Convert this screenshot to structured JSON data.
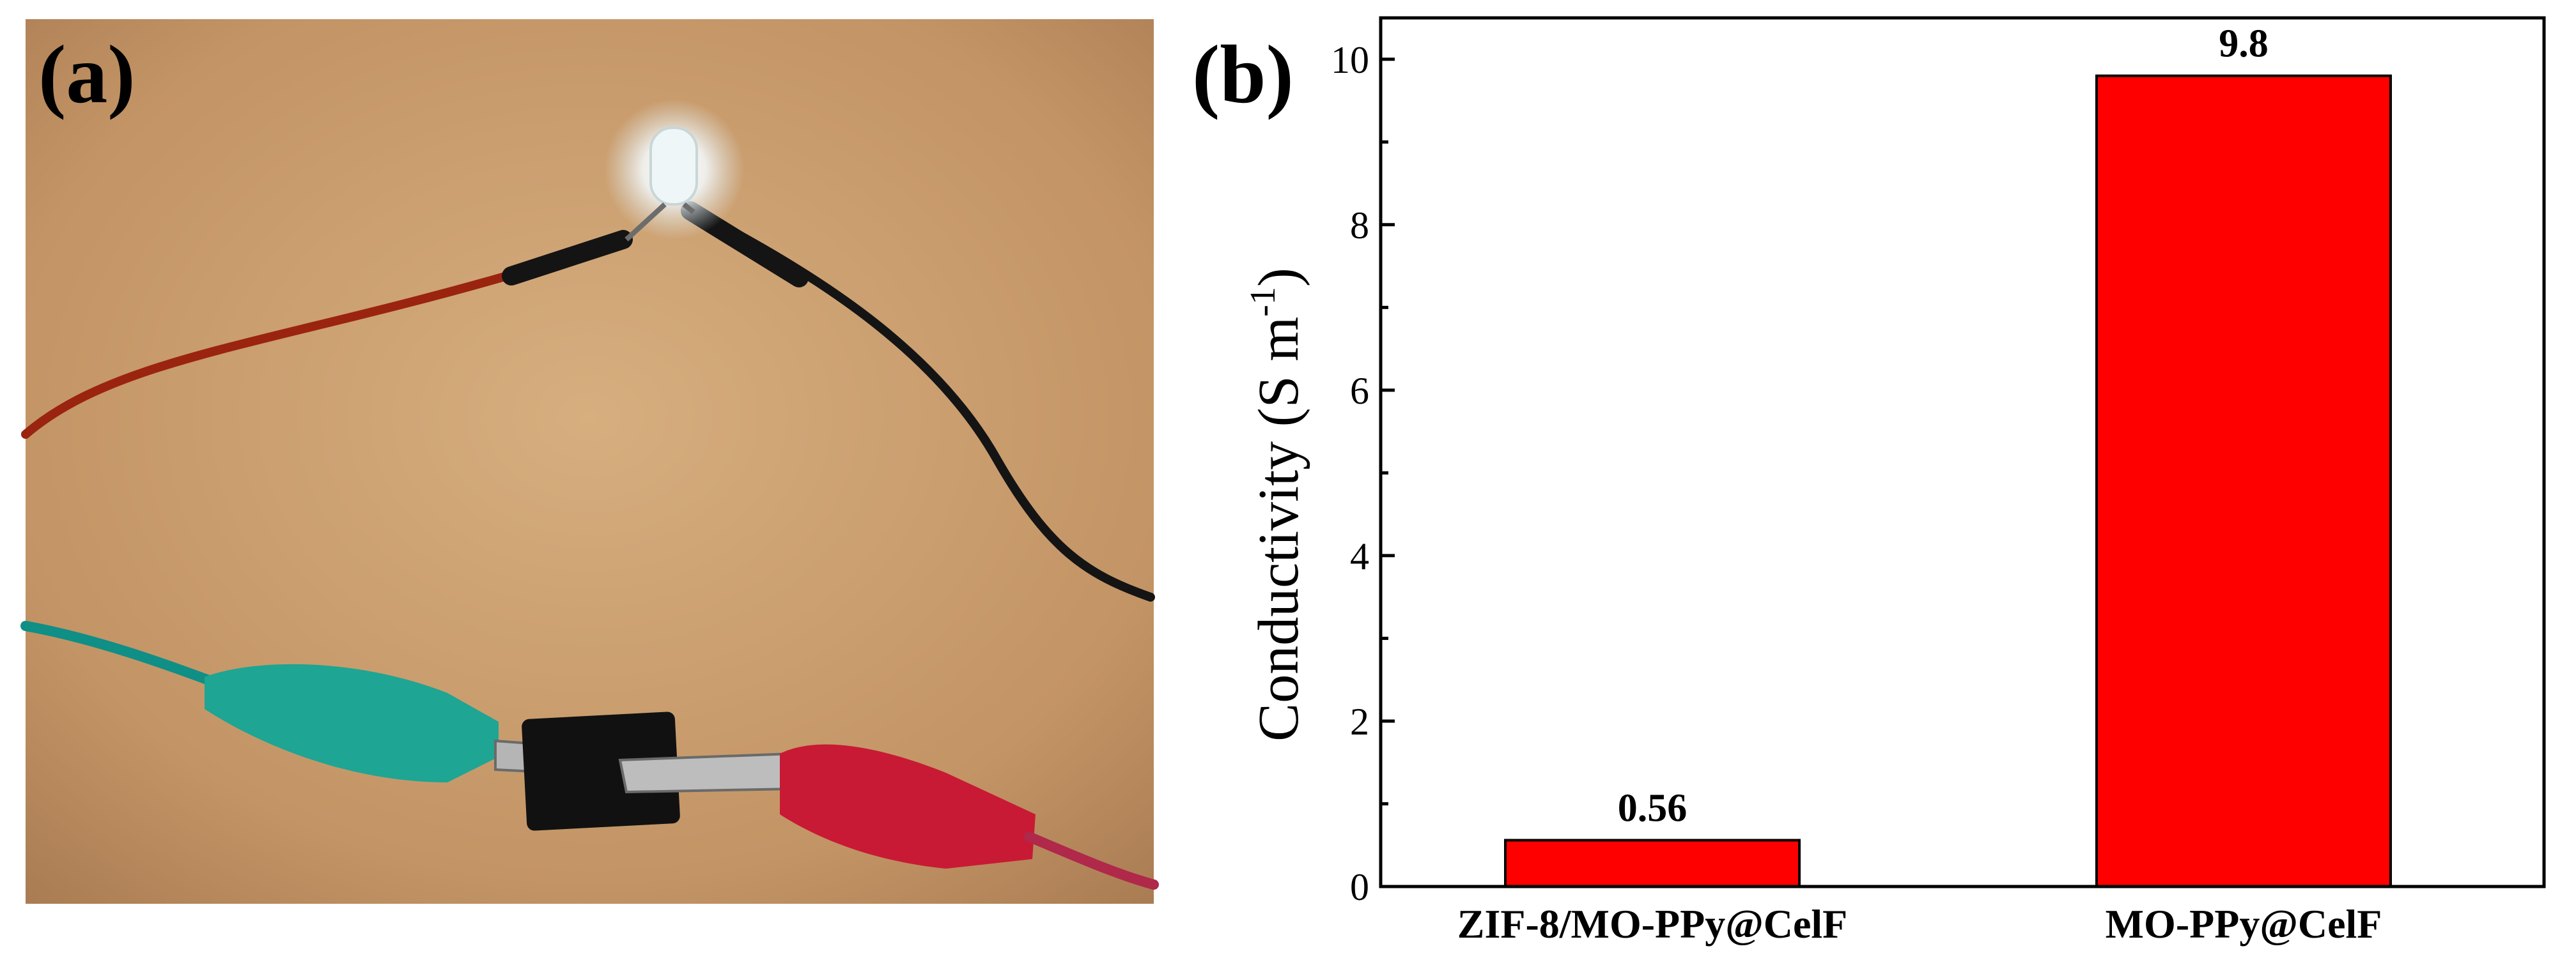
{
  "panels": {
    "a_label": "(a)",
    "b_label": "(b)"
  },
  "photo": {
    "background_color": "#c89a6c",
    "wire_colors": {
      "red": "#9a2410",
      "black": "#141414",
      "teal": "#0f8f86",
      "clip_red": "#c81a34",
      "clip_teal": "#1ea593",
      "tape": "#111111"
    }
  },
  "chart_data": {
    "type": "bar",
    "categories": [
      "ZIF-8/MO-PPy@CelF",
      "MO-PPy@CelF"
    ],
    "values": [
      0.56,
      9.8
    ],
    "data_labels": [
      "0.56",
      "9.8"
    ],
    "ylabel_main": "Conductivity (S m",
    "ylabel_sup": "-1",
    "ylabel_close": ")",
    "ylim": [
      0,
      10.5
    ],
    "yticks": [
      0,
      2,
      4,
      6,
      8,
      10
    ],
    "ytick_labels": [
      "0",
      "2",
      "4",
      "6",
      "8",
      "10"
    ],
    "bar_color": "#ff0000",
    "bar_edge_color": "#000000",
    "grid": false,
    "legend": "none"
  }
}
